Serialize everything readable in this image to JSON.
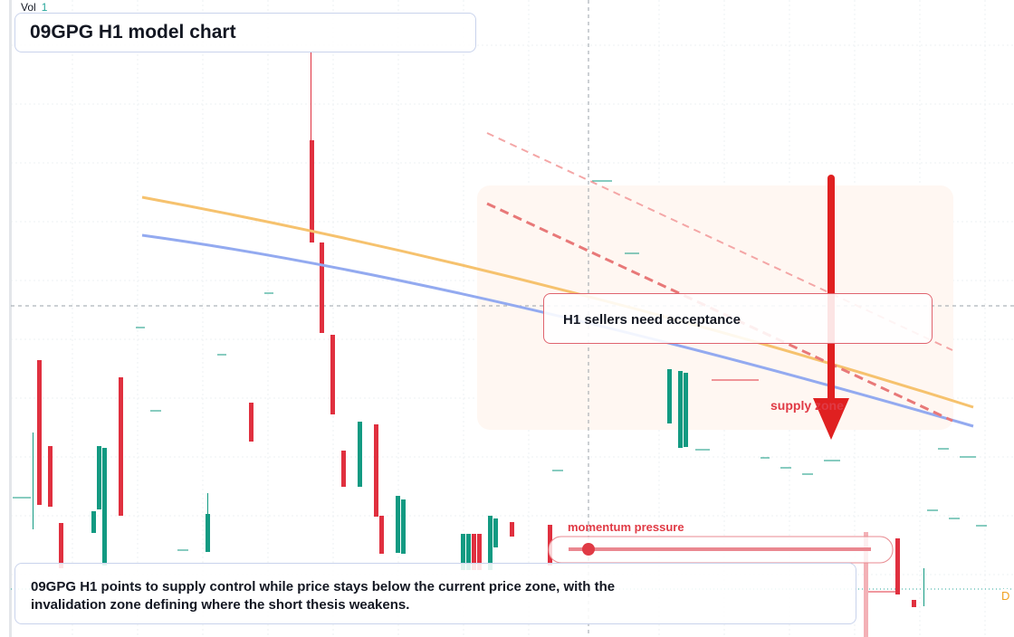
{
  "header": {
    "vol_label": "Vol",
    "vol_value": "1",
    "title": "09GPG H1 model chart"
  },
  "annotations": {
    "callout": "H1 sellers need acceptance",
    "zone_label": "supply zone",
    "slider_label": "momentum pressure",
    "badge": "D"
  },
  "summary": "09GPG H1 points to supply control while price stays below the current price zone, with the invalidation zone defining where the short thesis weakens."
}
